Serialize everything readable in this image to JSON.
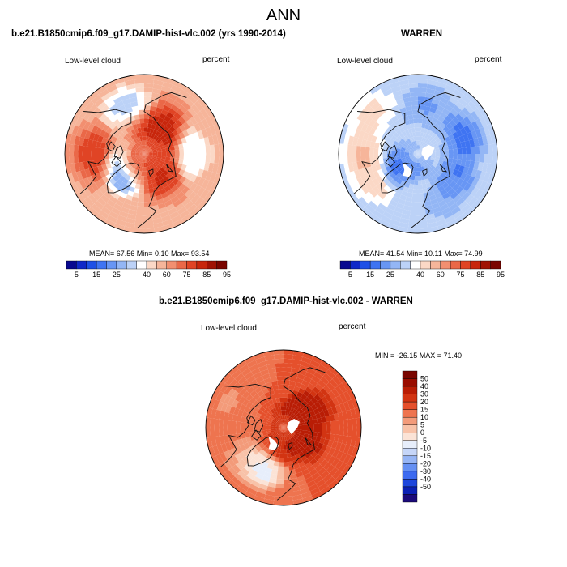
{
  "page_title": "ANN",
  "colors": {
    "coast": "#111111",
    "missing": "#ffffff",
    "scale_abs": [
      "#08088f",
      "#1028c8",
      "#1e50e6",
      "#3f74f2",
      "#6896f4",
      "#93b6f5",
      "#bcd2f7",
      "#ffffff",
      "#fbd8c6",
      "#f6b59a",
      "#f28f70",
      "#ea6848",
      "#e04425",
      "#c8260c",
      "#a01204",
      "#7a0500"
    ],
    "scale_diff": [
      "#1b0a7a",
      "#0b20b4",
      "#1d46dc",
      "#3c6af0",
      "#6590f3",
      "#96b5f5",
      "#c6d6f8",
      "#e7eefb",
      "#fbe3d6",
      "#f8c2a8",
      "#f39b7a",
      "#ee744f",
      "#e5502c",
      "#d23412",
      "#b91d05",
      "#9a0d00",
      "#7a0500"
    ]
  },
  "chart_data": [
    {
      "type": "heatmap",
      "projection": "polar-stereographic-north",
      "title": "b.e21.B1850cmip6.f09_g17.DAMIP-hist-vlc.002 (yrs 1990-2014)",
      "left_label": "Low-level cloud",
      "right_label": "percent",
      "stats_text": "MEAN=  67.56  Min=   0.10  Max=  93.54",
      "mean": 67.56,
      "min": 0.1,
      "max": 93.54,
      "colorbar": {
        "orientation": "horizontal",
        "ticks": [
          "5",
          "15",
          "25",
          "40",
          "60",
          "75",
          "85",
          "95"
        ],
        "range": [
          0,
          100
        ]
      },
      "field": {
        "base": 62,
        "blobs": [
          {
            "lat": 78,
            "lon": 320,
            "value": 82
          },
          {
            "lat": 74,
            "lon": 320,
            "value": 5
          },
          {
            "lat": 68,
            "lon": 150,
            "value": 88
          },
          {
            "lat": 75,
            "lon": 140,
            "value": 90
          },
          {
            "lat": 72,
            "lon": 40,
            "value": 86
          },
          {
            "lat": 78,
            "lon": 15,
            "value": 90
          },
          {
            "lat": 62,
            "lon": 90,
            "value": 40
          },
          {
            "lat": 60,
            "lon": 270,
            "value": 85
          },
          {
            "lat": 85,
            "lon": 90,
            "value": 75
          },
          {
            "lat": 60,
            "lon": 200,
            "value": 35
          }
        ]
      }
    },
    {
      "type": "heatmap",
      "projection": "polar-stereographic-north",
      "title": "WARREN",
      "left_label": "Low-level cloud",
      "right_label": "percent",
      "stats_text": "MEAN=  41.54  Min=  10.11  Max=  74.99",
      "mean": 41.54,
      "min": 10.11,
      "max": 74.99,
      "colorbar": {
        "orientation": "horizontal",
        "ticks": [
          "5",
          "15",
          "25",
          "40",
          "60",
          "75",
          "85",
          "95"
        ],
        "range": [
          0,
          100
        ]
      },
      "field": {
        "base": 40,
        "blobs": [
          {
            "lat": 62,
            "lon": 110,
            "value": 18
          },
          {
            "lat": 65,
            "lon": 60,
            "value": 20
          },
          {
            "lat": 62,
            "lon": 170,
            "value": 28
          },
          {
            "lat": 62,
            "lon": 30,
            "value": 30
          },
          {
            "lat": 60,
            "lon": 300,
            "value": 58
          },
          {
            "lat": 58,
            "lon": 270,
            "value": 62
          },
          {
            "lat": 55,
            "lon": 230,
            "value": 55
          },
          {
            "lat": 70,
            "lon": 350,
            "value": 45
          },
          {
            "lat": 75,
            "lon": 320,
            "value": 15
          }
        ]
      }
    },
    {
      "type": "heatmap",
      "projection": "polar-stereographic-north",
      "title": "b.e21.B1850cmip6.f09_g17.DAMIP-hist-vlc.002 - WARREN",
      "left_label": "Low-level cloud",
      "right_label": "percent",
      "stats_text": "MIN = -26.15 MAX =  71.40",
      "min": -26.15,
      "max": 71.4,
      "colorbar": {
        "orientation": "vertical",
        "ticks": [
          "50",
          "40",
          "30",
          "20",
          "15",
          "10",
          "5",
          "0",
          "-5",
          "-10",
          "-15",
          "-20",
          "-30",
          "-40",
          "-50"
        ],
        "range": [
          -50,
          50
        ]
      },
      "field": {
        "base": 20,
        "blobs": [
          {
            "lat": 68,
            "lon": 120,
            "value": 52
          },
          {
            "lat": 76,
            "lon": 140,
            "value": 55
          },
          {
            "lat": 72,
            "lon": 60,
            "value": 50
          },
          {
            "lat": 78,
            "lon": 20,
            "value": 45
          },
          {
            "lat": 65,
            "lon": 200,
            "value": 20
          },
          {
            "lat": 58,
            "lon": 270,
            "value": 18
          },
          {
            "lat": 60,
            "lon": 310,
            "value": 8
          },
          {
            "lat": 55,
            "lon": 250,
            "value": 12
          },
          {
            "lat": 62,
            "lon": 330,
            "value": -10
          }
        ]
      }
    }
  ]
}
